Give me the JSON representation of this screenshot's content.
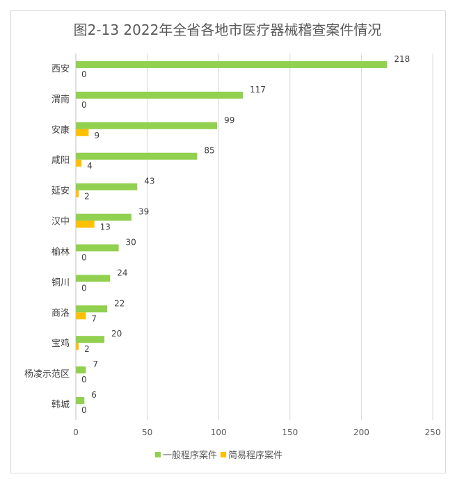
{
  "chart_data": {
    "type": "bar",
    "orientation": "horizontal",
    "title": "图2-13  2022年全省各地市医疗器械稽查案件情况",
    "categories": [
      "西安",
      "渭南",
      "安康",
      "咸阳",
      "延安",
      "汉中",
      "榆林",
      "铜川",
      "商洛",
      "宝鸡",
      "杨凌示范区",
      "韩城"
    ],
    "series": [
      {
        "name": "一般程序案件",
        "color": "#92d050",
        "values": [
          218,
          117,
          99,
          85,
          43,
          39,
          30,
          24,
          22,
          20,
          7,
          6
        ]
      },
      {
        "name": "简易程序案件",
        "color": "#ffc000",
        "values": [
          0,
          0,
          9,
          4,
          2,
          13,
          0,
          0,
          7,
          2,
          0,
          0
        ]
      }
    ],
    "xlim": [
      0,
      250
    ],
    "xticks": [
      0,
      50,
      100,
      150,
      200,
      250
    ],
    "xlabel": "",
    "ylabel": "",
    "grid": true,
    "legend": "bottom"
  }
}
